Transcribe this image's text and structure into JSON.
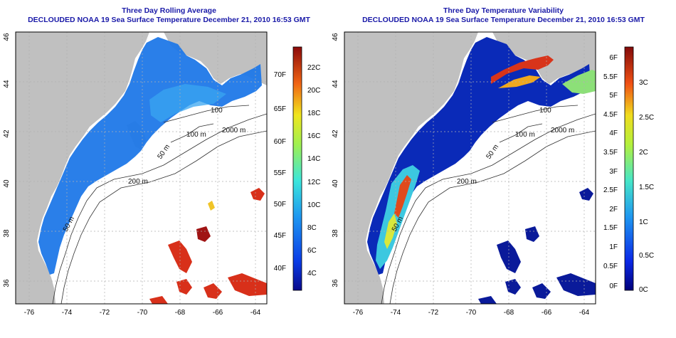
{
  "left_panel": {
    "title_line1": "Three Day Rolling Average",
    "title_line2": "DECLOUDED NOAA 19 Sea Surface Temperature December 21, 2010 16:53 GMT",
    "colorbar": {
      "celsius_labels": [
        "22C",
        "20C",
        "18C",
        "16C",
        "14C",
        "12C",
        "10C",
        "8C",
        "6C",
        "4C"
      ],
      "fahrenheit_labels": [
        "70F",
        "65F",
        "60F",
        "55F",
        "50F",
        "45F",
        "40F"
      ]
    }
  },
  "right_panel": {
    "title_line1": "Three Day Temperature Variability",
    "title_line2": "DECLOUDED NOAA 19 Sea Surface Temperature December 21, 2010 16:53 GMT",
    "colorbar": {
      "celsius_labels": [
        "3C",
        "2.5C",
        "2C",
        "1.5C",
        "1C",
        "0.5C",
        "0C"
      ],
      "fahrenheit_labels": [
        "6F",
        "5.5F",
        "5F",
        "4.5F",
        "4F",
        "3.5F",
        "3F",
        "2.5F",
        "2F",
        "1.5F",
        "1F",
        "0.5F",
        "0F"
      ]
    }
  },
  "axes": {
    "longitude_labels": [
      "-76",
      "-74",
      "-72",
      "-70",
      "-68",
      "-66",
      "-64"
    ],
    "latitude_labels": [
      "46",
      "44",
      "42",
      "40",
      "38",
      "36"
    ]
  },
  "contour_labels": {
    "c100": "100",
    "c100m": "100 m",
    "c2000m": "2000 m",
    "c200m": "200 m",
    "c50m_a": "50 m",
    "c50m_b": "50 m"
  },
  "colors": {
    "land": "#c0c0c0",
    "ocean": "#ffffff",
    "grid": "#b0b0b0",
    "title": "#1a1aa8",
    "cold_sst": "#1f78e8",
    "warm_sst": "#d8301a",
    "low_var": "#0a1a9a",
    "high_var": "#e03a14"
  }
}
